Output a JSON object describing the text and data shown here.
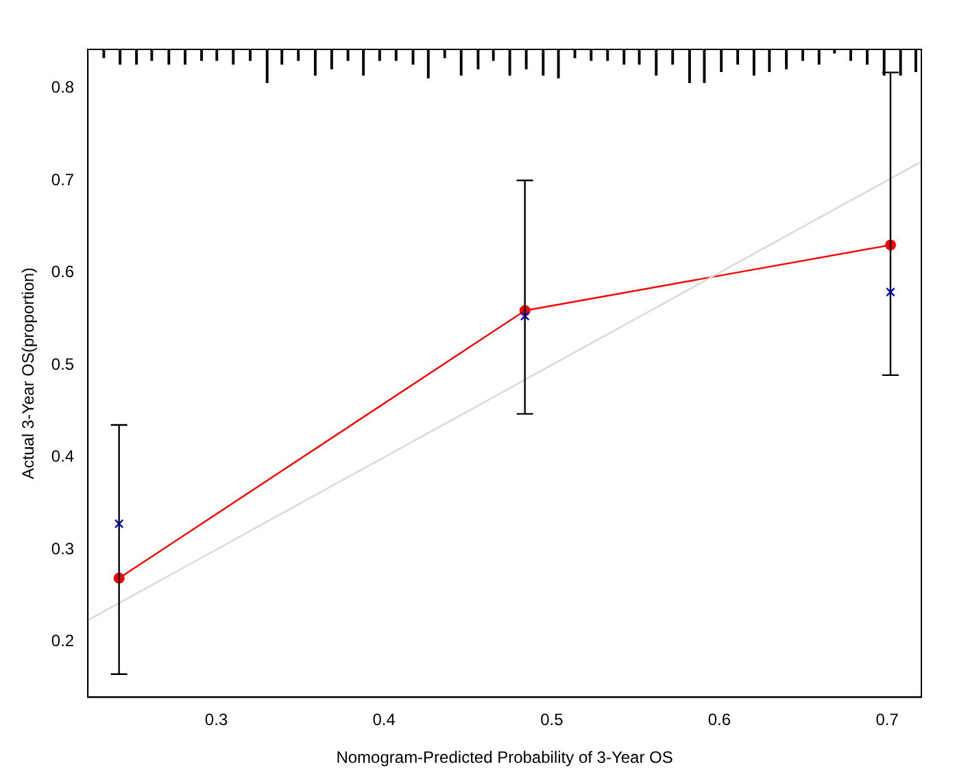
{
  "chart_data": {
    "type": "line",
    "xlabel": "Nomogram-Predicted Probability of 3-Year OS",
    "ylabel": "Actual 3-Year OS(proportion)",
    "xlim": [
      0.2234,
      0.7204
    ],
    "xticks": [
      0.3,
      0.4,
      0.5,
      0.6,
      0.7
    ],
    "ylim": [
      0.14,
      0.842
    ],
    "yticks": [
      0.2,
      0.3,
      0.4,
      0.5,
      0.6,
      0.7,
      0.8
    ],
    "grid": false,
    "legend": false,
    "series": [
      {
        "type": "line",
        "color": "#d9d9d9",
        "marker": "none",
        "x": [
          0.224,
          0.72
        ],
        "values": [
          0.224,
          0.72
        ]
      },
      {
        "type": "bar",
        "color": "#000000",
        "x": [
          0.2329,
          0.2426,
          0.2524,
          0.2615,
          0.2717,
          0.2814,
          0.2912,
          0.3003,
          0.3101,
          0.3202,
          0.3303,
          0.3391,
          0.3489,
          0.359,
          0.3688,
          0.3785,
          0.3877,
          0.3974,
          0.4072,
          0.4173,
          0.4264,
          0.4362,
          0.446,
          0.4561,
          0.4652,
          0.475,
          0.4848,
          0.4949,
          0.504,
          0.5138,
          0.5235,
          0.5333,
          0.5431,
          0.5522,
          0.5623,
          0.5721,
          0.5822,
          0.591,
          0.6011,
          0.6109,
          0.6206,
          0.6298,
          0.6399,
          0.6497,
          0.6594,
          0.6686,
          0.6783,
          0.6881,
          0.6982,
          0.708,
          0.7171
        ],
        "values": [
          0.009,
          0.016,
          0.016,
          0.012,
          0.016,
          0.016,
          0.012,
          0.012,
          0.016,
          0.012,
          0.036,
          0.016,
          0.012,
          0.028,
          0.021,
          0.012,
          0.028,
          0.012,
          0.012,
          0.016,
          0.031,
          0.009,
          0.028,
          0.021,
          0.012,
          0.028,
          0.021,
          0.028,
          0.031,
          0.009,
          0.012,
          0.012,
          0.016,
          0.016,
          0.028,
          0.016,
          0.036,
          0.036,
          0.024,
          0.016,
          0.028,
          0.024,
          0.021,
          0.012,
          0.016,
          0.004,
          0.012,
          0.016,
          0.028,
          0.028,
          0.024
        ],
        "base": [
          0.833,
          0.826,
          0.826,
          0.83,
          0.826,
          0.826,
          0.83,
          0.83,
          0.826,
          0.83,
          0.806,
          0.826,
          0.83,
          0.814,
          0.821,
          0.83,
          0.814,
          0.83,
          0.83,
          0.826,
          0.811,
          0.833,
          0.814,
          0.821,
          0.83,
          0.814,
          0.821,
          0.814,
          0.811,
          0.833,
          0.83,
          0.83,
          0.826,
          0.826,
          0.814,
          0.826,
          0.806,
          0.806,
          0.818,
          0.826,
          0.814,
          0.818,
          0.821,
          0.83,
          0.826,
          0.838,
          0.83,
          0.826,
          0.814,
          0.814,
          0.818
        ]
      },
      {
        "color": "#ff0000",
        "marker": "circle",
        "x": [
          0.242,
          0.484,
          0.702
        ],
        "values": [
          0.269,
          0.559,
          0.63
        ],
        "errors": [
          [
            0.165,
            0.435
          ],
          [
            0.447,
            0.7
          ],
          [
            0.489,
            0.817
          ]
        ]
      },
      {
        "type": "scatter",
        "color": "#0000ff",
        "marker": "cross",
        "x": [
          0.242,
          0.484,
          0.702
        ],
        "values": [
          0.328,
          0.553,
          0.579
        ]
      }
    ]
  }
}
